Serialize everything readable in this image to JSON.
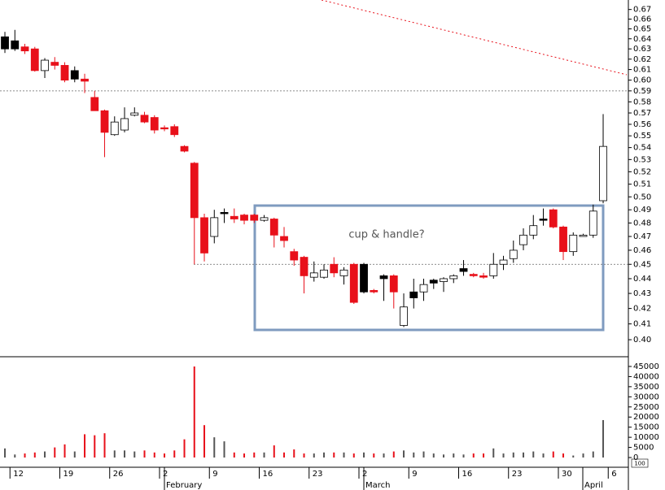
{
  "chart_data": {
    "type": "candlestick",
    "annotation": "cup & handle?",
    "log_scale": true,
    "ylim": [
      0.39,
      0.68
    ],
    "yticks": [
      {
        "value": 0.4,
        "label": "0.40"
      },
      {
        "value": 0.41,
        "label": "0.41"
      },
      {
        "value": 0.42,
        "label": "0.42"
      },
      {
        "value": 0.43,
        "label": "0.43"
      },
      {
        "value": 0.44,
        "label": "0.44"
      },
      {
        "value": 0.45,
        "label": "0.45"
      },
      {
        "value": 0.46,
        "label": "0.46"
      },
      {
        "value": 0.47,
        "label": "0.47"
      },
      {
        "value": 0.48,
        "label": "0.48"
      },
      {
        "value": 0.49,
        "label": "0.49"
      },
      {
        "value": 0.5,
        "label": "0.50"
      },
      {
        "value": 0.51,
        "label": "0.51"
      },
      {
        "value": 0.52,
        "label": "0.52"
      },
      {
        "value": 0.53,
        "label": "0.53"
      },
      {
        "value": 0.54,
        "label": "0.54"
      },
      {
        "value": 0.55,
        "label": "0.55"
      },
      {
        "value": 0.56,
        "label": "0.56"
      },
      {
        "value": 0.57,
        "label": "0.57"
      },
      {
        "value": 0.58,
        "label": "0.58"
      },
      {
        "value": 0.59,
        "label": "0.59"
      },
      {
        "value": 0.6,
        "label": "0.60"
      },
      {
        "value": 0.61,
        "label": "0.61"
      },
      {
        "value": 0.62,
        "label": "0.62"
      },
      {
        "value": 0.63,
        "label": "0.63"
      },
      {
        "value": 0.64,
        "label": "0.64"
      },
      {
        "value": 0.65,
        "label": "0.65"
      },
      {
        "value": 0.66,
        "label": "0.66"
      },
      {
        "value": 0.67,
        "label": "0.67"
      }
    ],
    "hlines": [
      0.59,
      0.45
    ],
    "categories": [
      null,
      "12",
      null,
      null,
      null,
      null,
      "19",
      null,
      null,
      null,
      null,
      "26",
      null,
      null,
      null,
      null,
      "2",
      null,
      null,
      null,
      null,
      "9",
      null,
      null,
      null,
      null,
      "16",
      null,
      null,
      null,
      null,
      "23",
      null,
      null,
      null,
      null,
      "2",
      null,
      null,
      null,
      null,
      "9",
      null,
      null,
      null,
      null,
      "16",
      null,
      null,
      null,
      null,
      "23",
      null,
      null,
      null,
      null,
      "30",
      null,
      null,
      null,
      null,
      "6"
    ],
    "x_month_labels": [
      "February",
      "March",
      "April"
    ],
    "open": [
      0.63,
      0.63,
      0.632,
      0.63,
      0.609,
      0.617,
      0.614,
      0.601,
      0.601,
      0.584,
      0.572,
      0.551,
      0.555,
      0.568,
      0.568,
      0.566,
      0.557,
      0.558,
      0.541,
      0.527,
      0.484,
      0.47,
      0.487,
      0.485,
      0.486,
      0.486,
      0.482,
      0.483,
      0.47,
      0.459,
      0.455,
      0.441,
      0.441,
      0.45,
      0.442,
      0.45,
      0.431,
      0.432,
      0.44,
      0.442,
      0.409,
      0.427,
      0.431,
      0.437,
      0.438,
      0.44,
      0.445,
      0.443,
      0.442,
      0.442,
      0.45,
      0.454,
      0.464,
      0.471,
      0.482,
      0.49,
      0.477,
      0.459,
      0.47,
      0.471,
      0.497,
      null
    ],
    "high": [
      0.647,
      0.649,
      0.635,
      0.632,
      0.621,
      0.622,
      0.617,
      0.613,
      0.606,
      0.59,
      0.573,
      0.567,
      0.575,
      0.575,
      0.571,
      0.568,
      0.559,
      0.56,
      0.542,
      0.528,
      0.487,
      0.49,
      0.491,
      0.491,
      0.487,
      0.487,
      0.486,
      0.484,
      0.477,
      0.461,
      0.456,
      0.452,
      0.45,
      0.455,
      0.448,
      0.451,
      0.451,
      0.433,
      0.443,
      0.443,
      0.43,
      0.44,
      0.44,
      0.44,
      0.441,
      0.443,
      0.453,
      0.444,
      0.444,
      0.458,
      0.456,
      0.467,
      0.476,
      0.486,
      0.491,
      0.491,
      0.478,
      0.473,
      0.472,
      0.494,
      0.569,
      null
    ],
    "low": [
      0.626,
      0.628,
      0.625,
      0.608,
      0.602,
      0.61,
      0.598,
      0.598,
      0.588,
      0.572,
      0.532,
      0.55,
      0.553,
      0.567,
      0.561,
      0.552,
      0.554,
      0.549,
      0.536,
      0.45,
      0.452,
      0.465,
      0.48,
      0.48,
      0.479,
      0.48,
      0.481,
      0.462,
      0.462,
      0.449,
      0.43,
      0.438,
      0.44,
      0.441,
      0.436,
      0.423,
      0.43,
      0.43,
      0.425,
      0.42,
      0.408,
      0.42,
      0.425,
      0.433,
      0.431,
      0.437,
      0.442,
      0.441,
      0.44,
      0.44,
      0.446,
      0.451,
      0.46,
      0.468,
      0.478,
      0.476,
      0.453,
      0.456,
      0.47,
      0.469,
      0.495,
      null
    ],
    "close": [
      0.642,
      0.638,
      0.628,
      0.609,
      0.619,
      0.614,
      0.6,
      0.609,
      0.599,
      0.572,
      0.553,
      0.562,
      0.565,
      0.57,
      0.562,
      0.555,
      0.556,
      0.551,
      0.537,
      0.484,
      0.458,
      0.484,
      0.488,
      0.483,
      0.482,
      0.482,
      0.484,
      0.471,
      0.467,
      0.453,
      0.442,
      0.444,
      0.446,
      0.444,
      0.446,
      0.424,
      0.45,
      0.431,
      0.442,
      0.431,
      0.421,
      0.431,
      0.436,
      0.439,
      0.44,
      0.442,
      0.447,
      0.442,
      0.441,
      0.45,
      0.453,
      0.46,
      0.471,
      0.478,
      0.483,
      0.477,
      0.459,
      0.471,
      0.471,
      0.489,
      0.541,
      null
    ],
    "fills": [
      "#000000",
      "#000000",
      "#e8101a",
      "#e8101a",
      "#ffffff",
      "#e8101a",
      "#e8101a",
      "#000000",
      "#e8101a",
      "#e8101a",
      "#e8101a",
      "#ffffff",
      "#ffffff",
      "#ffffff",
      "#e8101a",
      "#e8101a",
      "#e8101a",
      "#e8101a",
      "#e8101a",
      "#e8101a",
      "#e8101a",
      "#ffffff",
      "#000000",
      "#e8101a",
      "#e8101a",
      "#e8101a",
      "#ffffff",
      "#e8101a",
      "#e8101a",
      "#e8101a",
      "#e8101a",
      "#ffffff",
      "#ffffff",
      "#e8101a",
      "#ffffff",
      "#e8101a",
      "#000000",
      "#e8101a",
      "#000000",
      "#e8101a",
      "#ffffff",
      "#000000",
      "#ffffff",
      "#000000",
      "#ffffff",
      "#ffffff",
      "#000000",
      "#e8101a",
      "#e8101a",
      "#ffffff",
      "#ffffff",
      "#ffffff",
      "#ffffff",
      "#ffffff",
      "#000000",
      "#e8101a",
      "#e8101a",
      "#ffffff",
      "#ffffff",
      "#ffffff",
      "#ffffff",
      null
    ],
    "volume": {
      "values": [
        4500,
        1500,
        2000,
        2500,
        3000,
        5000,
        6500,
        3000,
        11500,
        11000,
        12000,
        3500,
        3500,
        3000,
        3500,
        2500,
        2000,
        3500,
        9000,
        45000,
        16000,
        10000,
        8000,
        2500,
        2000,
        2500,
        2500,
        6000,
        2500,
        4000,
        2000,
        2000,
        2500,
        2500,
        2500,
        2000,
        2500,
        2000,
        2000,
        3000,
        3500,
        2500,
        3000,
        2000,
        1500,
        2000,
        1500,
        2000,
        2000,
        4500,
        2000,
        2500,
        2500,
        3000,
        2000,
        3000,
        2000,
        1000,
        2000,
        3000,
        18500,
        null
      ],
      "ylim": [
        -4800,
        49000
      ],
      "yticks": [
        0,
        5000,
        10000,
        15000,
        20000,
        25000,
        30000,
        35000,
        40000,
        45000
      ],
      "unit_label": "100"
    }
  }
}
